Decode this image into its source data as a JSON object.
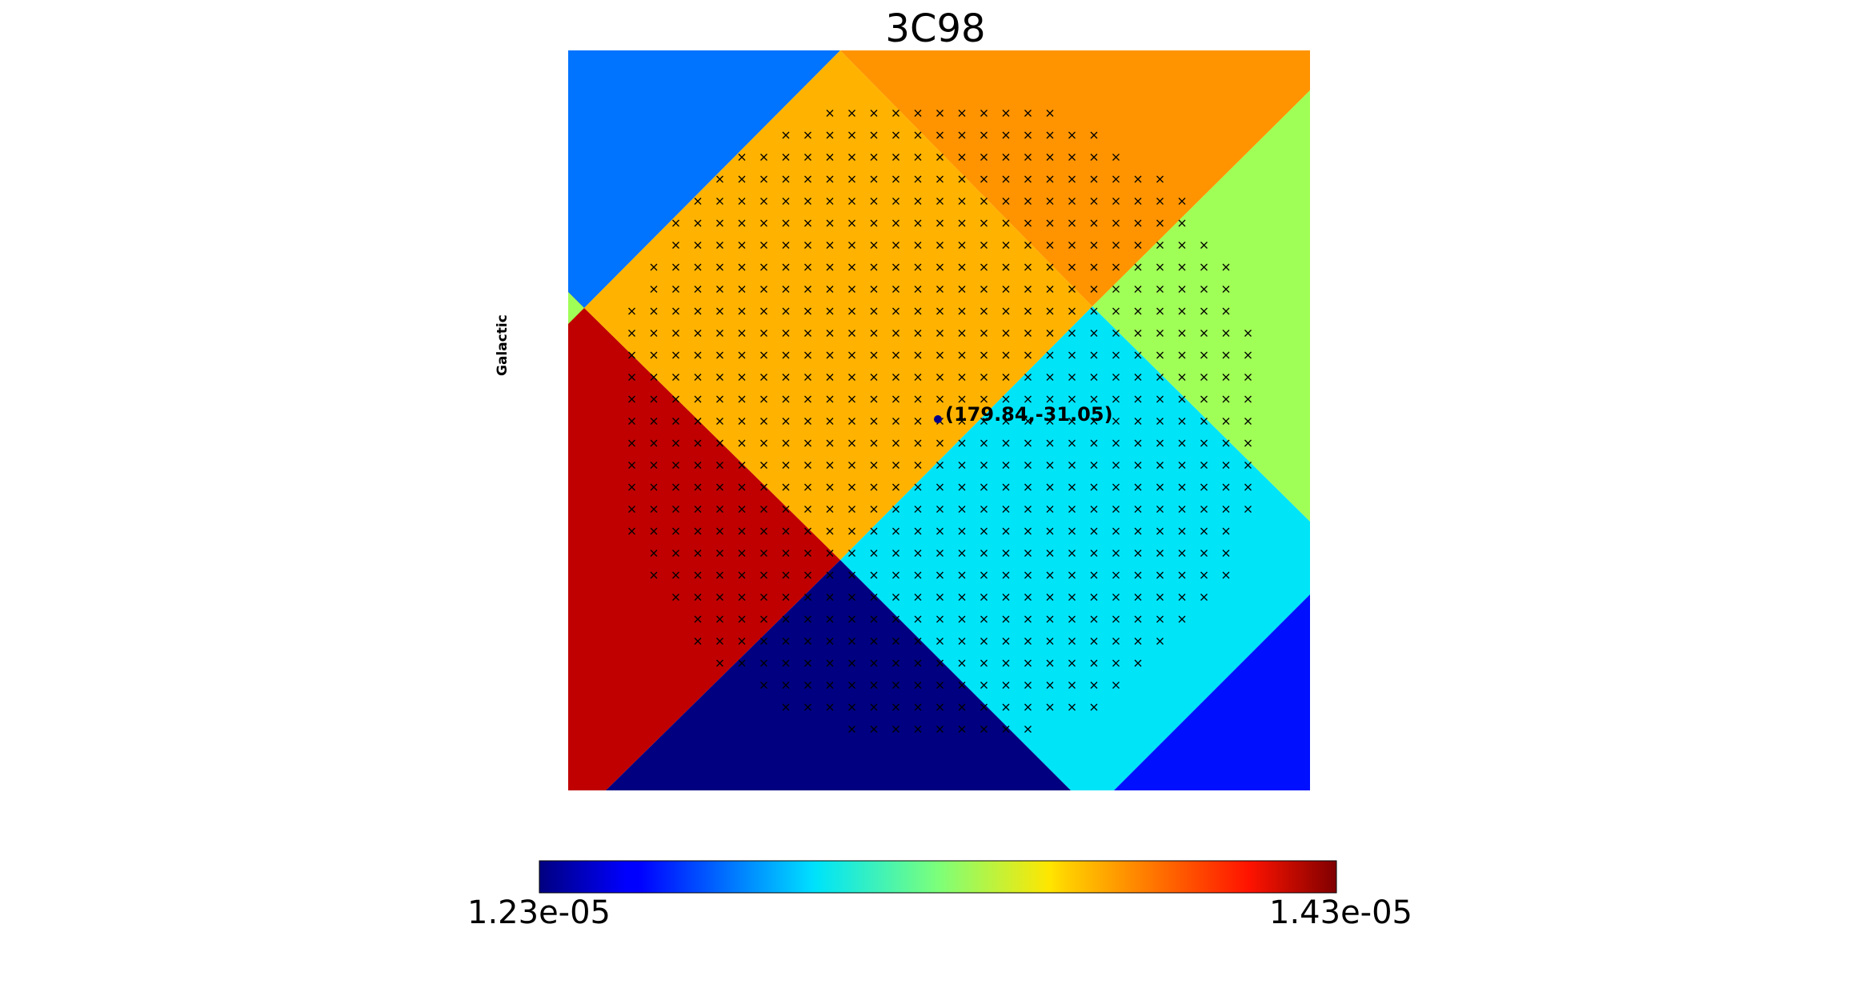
{
  "chart_data": {
    "type": "heatmap",
    "title": "3C98",
    "coordinate_system_label": "Galactic",
    "colormap": "jet",
    "colorbar": {
      "min_label": "1.23e-05",
      "max_label": "1.43e-05",
      "min": 1.23e-05,
      "max": 1.43e-05
    },
    "marker": {
      "label": "(179.84,-31.05)",
      "lon": 179.84,
      "lat": -31.05
    },
    "pixels": [
      {
        "name": "top-left",
        "value": 1.295e-05,
        "color": "#0073ff"
      },
      {
        "name": "center-upper",
        "value": 1.383e-05,
        "color": "#ffb300"
      },
      {
        "name": "top-right",
        "value": 1.389e-05,
        "color": "#ff9400"
      },
      {
        "name": "right",
        "value": 1.345e-05,
        "color": "#a0ff56"
      },
      {
        "name": "left",
        "value": 1.418e-05,
        "color": "#c00000"
      },
      {
        "name": "center-lower",
        "value": 1.318e-05,
        "color": "#00e4f8"
      },
      {
        "name": "bottom",
        "value": 1.232e-05,
        "color": "#000080"
      },
      {
        "name": "bottom-right",
        "value": 1.262e-05,
        "color": "#0010ff"
      }
    ],
    "grid": false
  }
}
